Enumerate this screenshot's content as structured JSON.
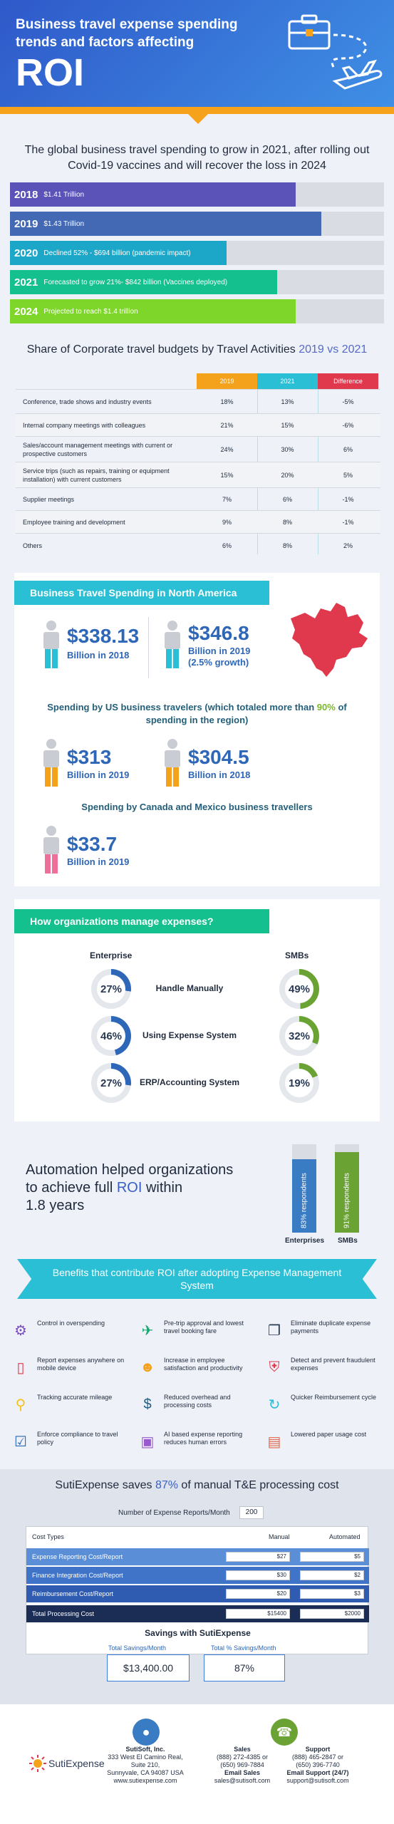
{
  "header": {
    "title": "Business travel expense spending trends and factors affecting",
    "roi": "ROI"
  },
  "global": {
    "title": "The global business travel spending to grow in 2021, after rolling out Covid-19 vaccines and will recover the loss in 2024",
    "bars": [
      {
        "year": "2018",
        "text": "$1.41 Trillion",
        "fill": 0.91,
        "color": "#5b53b7"
      },
      {
        "year": "2019",
        "text": "$1.43 Trillion",
        "fill": 0.99,
        "color": "#4469b4"
      },
      {
        "year": "2020",
        "text": "Declined 52% - $694 billion (pandemic impact)",
        "fill": 0.69,
        "color": "#1ca6c8"
      },
      {
        "year": "2021",
        "text": "Forecasted to grow 21%- $842 billion (Vaccines deployed)",
        "fill": 0.85,
        "color": "#14c08e"
      },
      {
        "year": "2024",
        "text": "Projected to reach $1.4 trillion",
        "fill": 0.91,
        "color": "#7fd62a"
      }
    ]
  },
  "share": {
    "title": "Share of Corporate travel budgets by Travel Activities",
    "years": "2019 vs 2021",
    "headers": [
      "2019",
      "2021",
      "Difference"
    ],
    "header_colors": [
      "#f4a11c",
      "#2bbfd6",
      "#e0394e"
    ],
    "rows": [
      {
        "label": "Conference, trade shows and industry events",
        "v2019": "18%",
        "v2021": "13%",
        "diff": "-5%"
      },
      {
        "label": "Internal company meetings with colleagues",
        "v2019": "21%",
        "v2021": "15%",
        "diff": "-6%"
      },
      {
        "label": "Sales/account management meetings with current or prospective customers",
        "v2019": "24%",
        "v2021": "30%",
        "diff": "6%"
      },
      {
        "label": "Service trips (such as repairs, training or equipment installation) with current customers",
        "v2019": "15%",
        "v2021": "20%",
        "diff": "5%"
      },
      {
        "label": "Supplier meetings",
        "v2019": "7%",
        "v2021": "6%",
        "diff": "-1%"
      },
      {
        "label": "Employee training and development",
        "v2019": "9%",
        "v2021": "8%",
        "diff": "-1%"
      },
      {
        "label": "Others",
        "v2019": "6%",
        "v2021": "8%",
        "diff": "2%"
      }
    ]
  },
  "na": {
    "tab": "Business Travel Spending in North America",
    "a_value": "$338.13",
    "a_sub": "Billion in 2018",
    "b_value": "$346.8",
    "b_sub1": "Billion in 2019",
    "b_sub2": "(2.5% growth)",
    "us_title_pre": "Spending by US business travelers (which totaled more than",
    "us_title_pct": "90%",
    "us_title_post": "of spending in the region)",
    "c_value": "$313",
    "c_sub": "Billion in 2019",
    "d_value": "$304.5",
    "d_sub": "Billion in 2018",
    "cm_title": "Spending by Canada and Mexico business travellers",
    "e_value": "$33.7",
    "e_sub": "Billion in 2019"
  },
  "manage": {
    "tab": "How organizations manage expenses?",
    "col_enterprise": "Enterprise",
    "col_smb": "SMBs",
    "rows": [
      {
        "label": "Handle Manually",
        "ent": "27%",
        "ent_val": 27,
        "smb": "49%",
        "smb_val": 49
      },
      {
        "label": "Using Expense System",
        "ent": "46%",
        "ent_val": 46,
        "smb": "32%",
        "smb_val": 32
      },
      {
        "label": "ERP/Accounting System",
        "ent": "27%",
        "ent_val": 27,
        "smb": "19%",
        "smb_val": 19
      }
    ],
    "ent_color": "#2e66b8",
    "smb_color": "#6aa334"
  },
  "automation": {
    "line1": "Automation helped organizations",
    "line2a": "to achieve full",
    "line2b": "ROI",
    "line2c": "within",
    "line3": "1.8 years",
    "ent_text": "83% respondents",
    "ent_val": 83,
    "smb_text": "91% respondents",
    "smb_val": 91,
    "ent_label": "Enterprises",
    "smb_label": "SMBs"
  },
  "benefits": {
    "title": "Benefits that contribute ROI after adopting Expense Management System",
    "items": [
      {
        "text": "Control in overspending",
        "icon": "gear-dollar-icon"
      },
      {
        "text": "Pre-trip approval and lowest travel booking fare",
        "icon": "plane-icon"
      },
      {
        "text": "Eliminate duplicate expense payments",
        "icon": "duplicate-icon"
      },
      {
        "text": "Report expenses anywhere on mobile device",
        "icon": "mobile-icon"
      },
      {
        "text": "Increase in employee satisfaction and productivity",
        "icon": "people-icon"
      },
      {
        "text": "Detect and prevent fraudulent expenses",
        "icon": "shield-icon"
      },
      {
        "text": "Tracking accurate mileage",
        "icon": "magnifier-dollar-icon"
      },
      {
        "text": "Reduced overhead and processing costs",
        "icon": "dollar-down-icon"
      },
      {
        "text": "Quicker Reimbursement cycle",
        "icon": "cycle-icon"
      },
      {
        "text": "Enforce compliance to travel policy",
        "icon": "checklist-icon"
      },
      {
        "text": "AI based expense reporting reduces human errors",
        "icon": "chip-icon"
      },
      {
        "text": "Lowered paper usage cost",
        "icon": "paper-minus-icon"
      }
    ]
  },
  "savings": {
    "title_pre": "SutiExpense saves",
    "title_pct": "87%",
    "title_post": "of manual T&E processing cost",
    "reports_label": "Number of Expense Reports/Month",
    "reports_value": "200",
    "col_type": "Cost Types",
    "col_manual": "Manual",
    "col_auto": "Automated",
    "rows": [
      {
        "label": "Expense Reporting Cost/Report",
        "manual": "$27",
        "auto": "$5"
      },
      {
        "label": "Finance Integration Cost/Report",
        "manual": "$30",
        "auto": "$2"
      },
      {
        "label": "Reimbursement Cost/Report",
        "manual": "$20",
        "auto": "$3"
      }
    ],
    "total_label": "Total Processing Cost",
    "total_manual": "$15400",
    "total_auto": "$2000",
    "with_title": "Savings with SutiExpense",
    "month_label": "Total Savings/Month",
    "month_value": "$13,400.00",
    "pct_label": "Total % Savings/Month",
    "pct_value": "87%"
  },
  "footer": {
    "logo": "SutiExpense",
    "company": "SutiSoft, Inc.",
    "addr1": "333 West El Camino Real,",
    "addr2": "Suite 210,",
    "addr3": "Sunnyvale, CA 94087 USA",
    "web": "www.sutiexpense.com",
    "sales_h": "Sales",
    "sales1": "(888) 272-4385 or",
    "sales2": "(650) 969-7884",
    "sales_email_h": "Email Sales",
    "sales_email": "sales@sutisoft.com",
    "support_h": "Support",
    "sup1": "(888) 465-2847 or",
    "sup2": "(650) 396-7740",
    "sup_email_h": "Email Support (24/7)",
    "sup_email": "support@sutisoft.com"
  }
}
